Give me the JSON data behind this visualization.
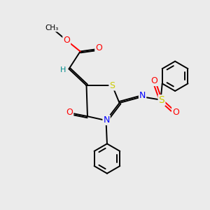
{
  "background_color": "#ebebeb",
  "bond_color": "#000000",
  "atom_colors": {
    "O": "#ff0000",
    "N": "#0000ff",
    "S": "#cccc00",
    "H": "#008b8b",
    "C": "#000000"
  },
  "bond_width": 1.4,
  "figsize": [
    3.0,
    3.0
  ],
  "dpi": 100
}
